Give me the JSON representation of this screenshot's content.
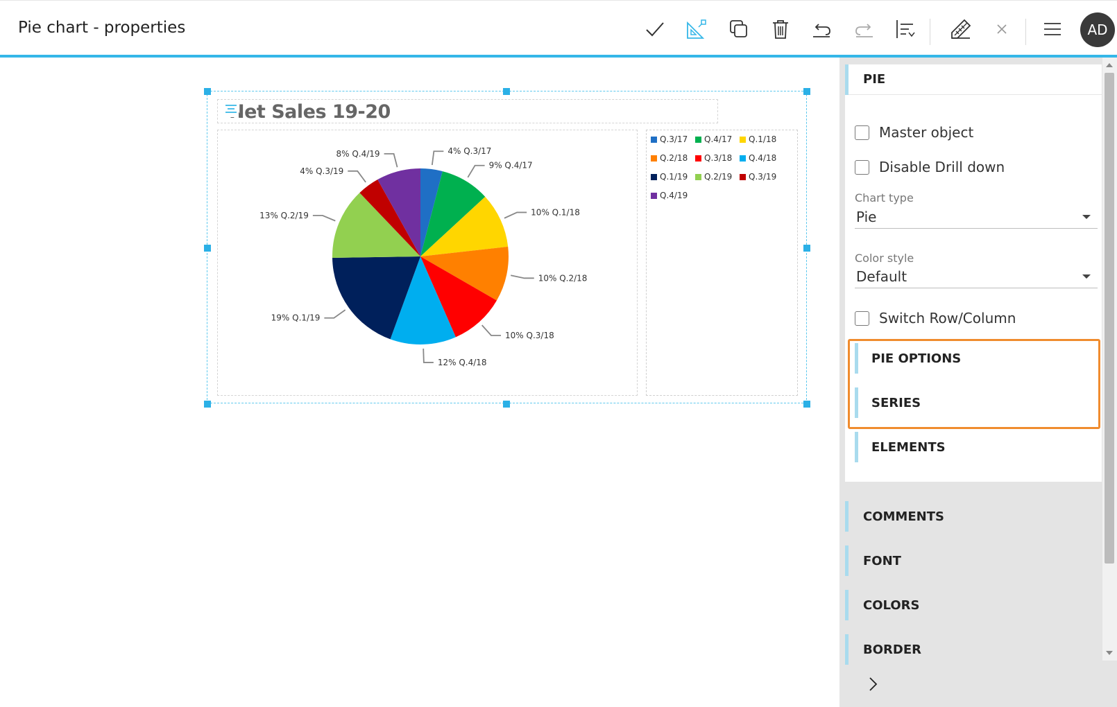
{
  "header": {
    "title": "Pie chart - properties",
    "avatar_initials": "AD",
    "icons": [
      "check-icon",
      "chart-design-icon",
      "duplicate-icon",
      "delete-icon",
      "undo-icon",
      "redo-icon",
      "sort-icon",
      "edit-ruler-icon",
      "close-icon",
      "menu-icon"
    ]
  },
  "chart": {
    "title": "Net Sales 19-20",
    "legend": [
      {
        "label": "Q.3/17",
        "color": "#1f6fc5"
      },
      {
        "label": "Q.4/17",
        "color": "#00b04f"
      },
      {
        "label": "Q.1/18",
        "color": "#ffd600"
      },
      {
        "label": "Q.2/18",
        "color": "#ff8000"
      },
      {
        "label": "Q.3/18",
        "color": "#ff0000"
      },
      {
        "label": "Q.4/18",
        "color": "#00aeef"
      },
      {
        "label": "Q.1/19",
        "color": "#00205b"
      },
      {
        "label": "Q.2/19",
        "color": "#92d050"
      },
      {
        "label": "Q.3/19",
        "color": "#c00000"
      },
      {
        "label": "Q.4/19",
        "color": "#7030a0"
      }
    ]
  },
  "chart_data": {
    "type": "pie",
    "title": "Net Sales 19-20",
    "categories": [
      "Q.3/17",
      "Q.4/17",
      "Q.1/18",
      "Q.2/18",
      "Q.3/18",
      "Q.4/18",
      "Q.1/19",
      "Q.2/19",
      "Q.3/19",
      "Q.4/19"
    ],
    "values": [
      4,
      9,
      10,
      10,
      10,
      12,
      19,
      13,
      4,
      8
    ],
    "data_labels": [
      "4% Q.3/17",
      "9% Q.4/17",
      "10% Q.1/18",
      "10% Q.2/18",
      "10% Q.3/18",
      "12% Q.4/18",
      "19% Q.1/19",
      "13% Q.2/19",
      "4% Q.3/19",
      "8% Q.4/19"
    ],
    "legend_placement": "right"
  },
  "panel": {
    "section_pie": "PIE",
    "master_object": "Master object",
    "disable_drill": "Disable Drill down",
    "chart_type_label": "Chart type",
    "chart_type_value": "Pie",
    "color_style_label": "Color style",
    "color_style_value": "Default",
    "switch_row_col": "Switch Row/Column",
    "pie_options": "PIE OPTIONS",
    "series": "SERIES",
    "elements": "ELEMENTS",
    "comments": "COMMENTS",
    "font": "FONT",
    "colors": "COLORS",
    "border": "BORDER",
    "highlight_color": "#f08c2e"
  }
}
